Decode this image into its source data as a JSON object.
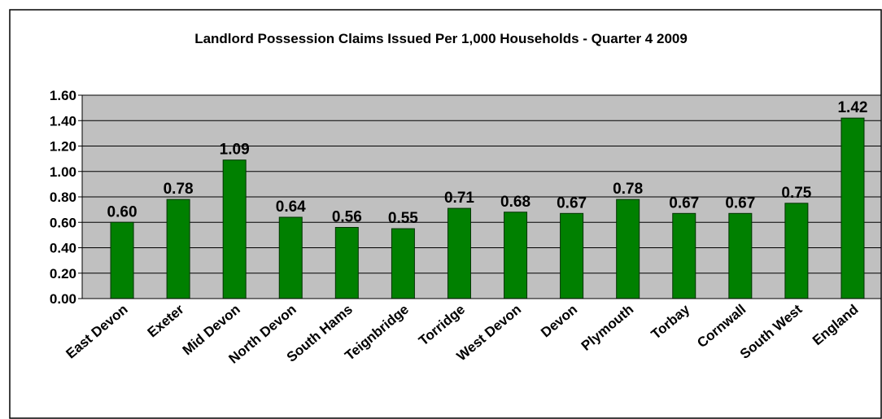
{
  "chart_data": {
    "type": "bar",
    "title": "Landlord Possession Claims Issued Per 1,000 Households - Quarter 4 2009",
    "categories": [
      "East Devon",
      "Exeter",
      "Mid Devon",
      "North Devon",
      "South Hams",
      "Teignbridge",
      "Torridge",
      "West Devon",
      "Devon",
      "Plymouth",
      "Torbay",
      "Cornwall",
      "South West",
      "England"
    ],
    "values": [
      0.6,
      0.78,
      1.09,
      0.64,
      0.56,
      0.55,
      0.71,
      0.68,
      0.67,
      0.78,
      0.67,
      0.67,
      0.75,
      1.42
    ],
    "value_labels": [
      "0.60",
      "0.78",
      "1.09",
      "0.64",
      "0.56",
      "0.55",
      "0.71",
      "0.68",
      "0.67",
      "0.78",
      "0.67",
      "0.67",
      "0.75",
      "1.42"
    ],
    "color": "#008000",
    "ylim": [
      0,
      1.6
    ],
    "yticks": [
      {
        "value": 0,
        "label": "0.00"
      },
      {
        "value": 0.2,
        "label": "0.20"
      },
      {
        "value": 0.4,
        "label": "0.40"
      },
      {
        "value": 0.6,
        "label": "0.60"
      },
      {
        "value": 0.8,
        "label": "0.80"
      },
      {
        "value": 1.0,
        "label": "1.00"
      },
      {
        "value": 1.2,
        "label": "1.20"
      },
      {
        "value": 1.4,
        "label": "1.40"
      },
      {
        "value": 1.6,
        "label": "1.60"
      }
    ],
    "grid": true
  }
}
